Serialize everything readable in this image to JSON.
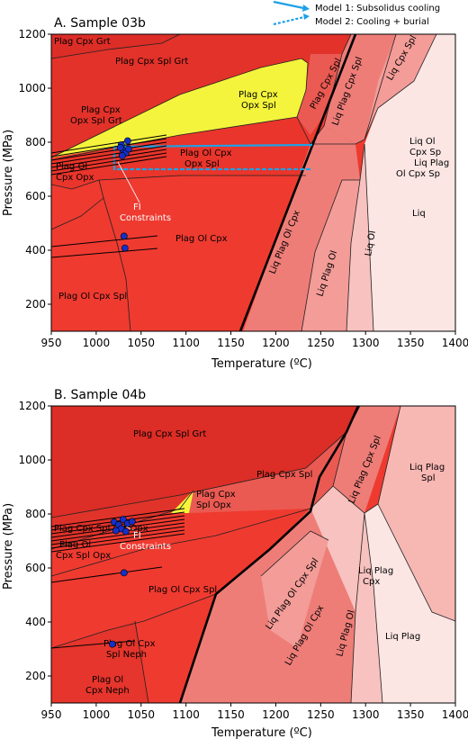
{
  "legend": {
    "model1": "Model 1: Subsolidus cooling",
    "model2": "Model 2: Cooling + burial",
    "color": "#1ea1e6"
  },
  "chart_data": [
    {
      "type": "scatter",
      "title": "A. Sample 03b",
      "xlabel": "Temperature (ºC)",
      "ylabel": "Pressure (MPa)",
      "xlim": [
        950,
        1400
      ],
      "ylim": [
        100,
        1200
      ],
      "xticks": [
        "950",
        "1000",
        "1050",
        "1100",
        "1150",
        "1200",
        "1250",
        "1300",
        "1350",
        "1400"
      ],
      "yticks": [
        "200",
        "400",
        "600",
        "800",
        "1000",
        "1200"
      ],
      "fields": [
        {
          "text": "Plag Cpx Grt"
        },
        {
          "text": "Plag Cpx Spl Grt"
        },
        {
          "text": "Plag Cpx"
        },
        {
          "text": "Opx Spl Grt"
        },
        {
          "text": "Plag Cpx"
        },
        {
          "text": "Opx Spl"
        },
        {
          "text": "Plag Cpx Spl"
        },
        {
          "text": "Liq Plag Cpx Spl"
        },
        {
          "text": "Liq Cpx Spl"
        },
        {
          "text": "Liq Ol"
        },
        {
          "text": "Cpx Sp"
        },
        {
          "text": "Liq Plag"
        },
        {
          "text": "Ol Cpx Sp"
        },
        {
          "text": "Plag Ol"
        },
        {
          "text": "Cpx Opx"
        },
        {
          "text": "Plag Ol Cpx"
        },
        {
          "text": "Opx Spl"
        },
        {
          "text": "Plag Ol Cpx"
        },
        {
          "text": "Liq Plag Ol Cpx"
        },
        {
          "text": "Liq Plag Ol"
        },
        {
          "text": "Liq Ol"
        },
        {
          "text": "Liq"
        },
        {
          "text": "Plag Ol Cpx Spl"
        }
      ],
      "annotation": [
        "FI",
        "Constraints"
      ],
      "points": [
        {
          "x": 1028,
          "y": 790
        },
        {
          "x": 1035,
          "y": 805
        },
        {
          "x": 1030,
          "y": 770
        },
        {
          "x": 1033,
          "y": 760
        },
        {
          "x": 1027,
          "y": 780
        },
        {
          "x": 1036,
          "y": 775
        },
        {
          "x": 1029,
          "y": 750
        },
        {
          "x": 1031,
          "y": 452
        },
        {
          "x": 1032,
          "y": 408
        }
      ]
    },
    {
      "type": "scatter",
      "title": "B. Sample 04b",
      "xlabel": "Temperature (ºC)",
      "ylabel": "Pressure (MPa)",
      "xlim": [
        950,
        1400
      ],
      "ylim": [
        100,
        1200
      ],
      "xticks": [
        "950",
        "1000",
        "1050",
        "1100",
        "1150",
        "1200",
        "1250",
        "1300",
        "1350",
        "1400"
      ],
      "yticks": [
        "200",
        "400",
        "600",
        "800",
        "1000",
        "1200"
      ],
      "fields": [
        {
          "text": "Plag Cpx Spl Grt"
        },
        {
          "text": "Plag Cpx Spl"
        },
        {
          "text": "Liq Plag Cpx Spl"
        },
        {
          "text": "Liq Plag"
        },
        {
          "text": "Spl"
        },
        {
          "text": "Plag Cpx"
        },
        {
          "text": "Spl Opx"
        },
        {
          "text": "Plag Cpx Spl Grt Opx"
        },
        {
          "text": "Plag Ol"
        },
        {
          "text": "Cpx Spl Opx"
        },
        {
          "text": "Liq Plag"
        },
        {
          "text": "Cpx"
        },
        {
          "text": "Plag Ol Cpx Spl"
        },
        {
          "text": "Liq Plag Ol Cpx Spl"
        },
        {
          "text": "Liq Plag Ol Cpx"
        },
        {
          "text": "Liq Plag Ol"
        },
        {
          "text": "Liq Plag"
        },
        {
          "text": "Plag Ol Cpx"
        },
        {
          "text": "Spl Neph"
        },
        {
          "text": "Plag Ol"
        },
        {
          "text": "Cpx Neph"
        }
      ],
      "annotation": [
        "FI",
        "Constraints"
      ],
      "points": [
        {
          "x": 1020,
          "y": 770
        },
        {
          "x": 1025,
          "y": 760
        },
        {
          "x": 1030,
          "y": 780
        },
        {
          "x": 1035,
          "y": 765
        },
        {
          "x": 1028,
          "y": 745
        },
        {
          "x": 1033,
          "y": 735
        },
        {
          "x": 1040,
          "y": 772
        },
        {
          "x": 1022,
          "y": 738
        },
        {
          "x": 1031,
          "y": 582
        },
        {
          "x": 1018,
          "y": 318
        }
      ]
    }
  ],
  "colors": {
    "c1": "#dc2d26",
    "c2": "#e5352c",
    "c3": "#ef3a30",
    "c4": "#f2473b",
    "c5": "#ea5a52",
    "c6": "#ee7d78",
    "c7": "#f39c98",
    "c8": "#f7c2bf",
    "c9": "#fbe6e4",
    "yellow": "#f4f43c",
    "point": "#1530c8"
  }
}
